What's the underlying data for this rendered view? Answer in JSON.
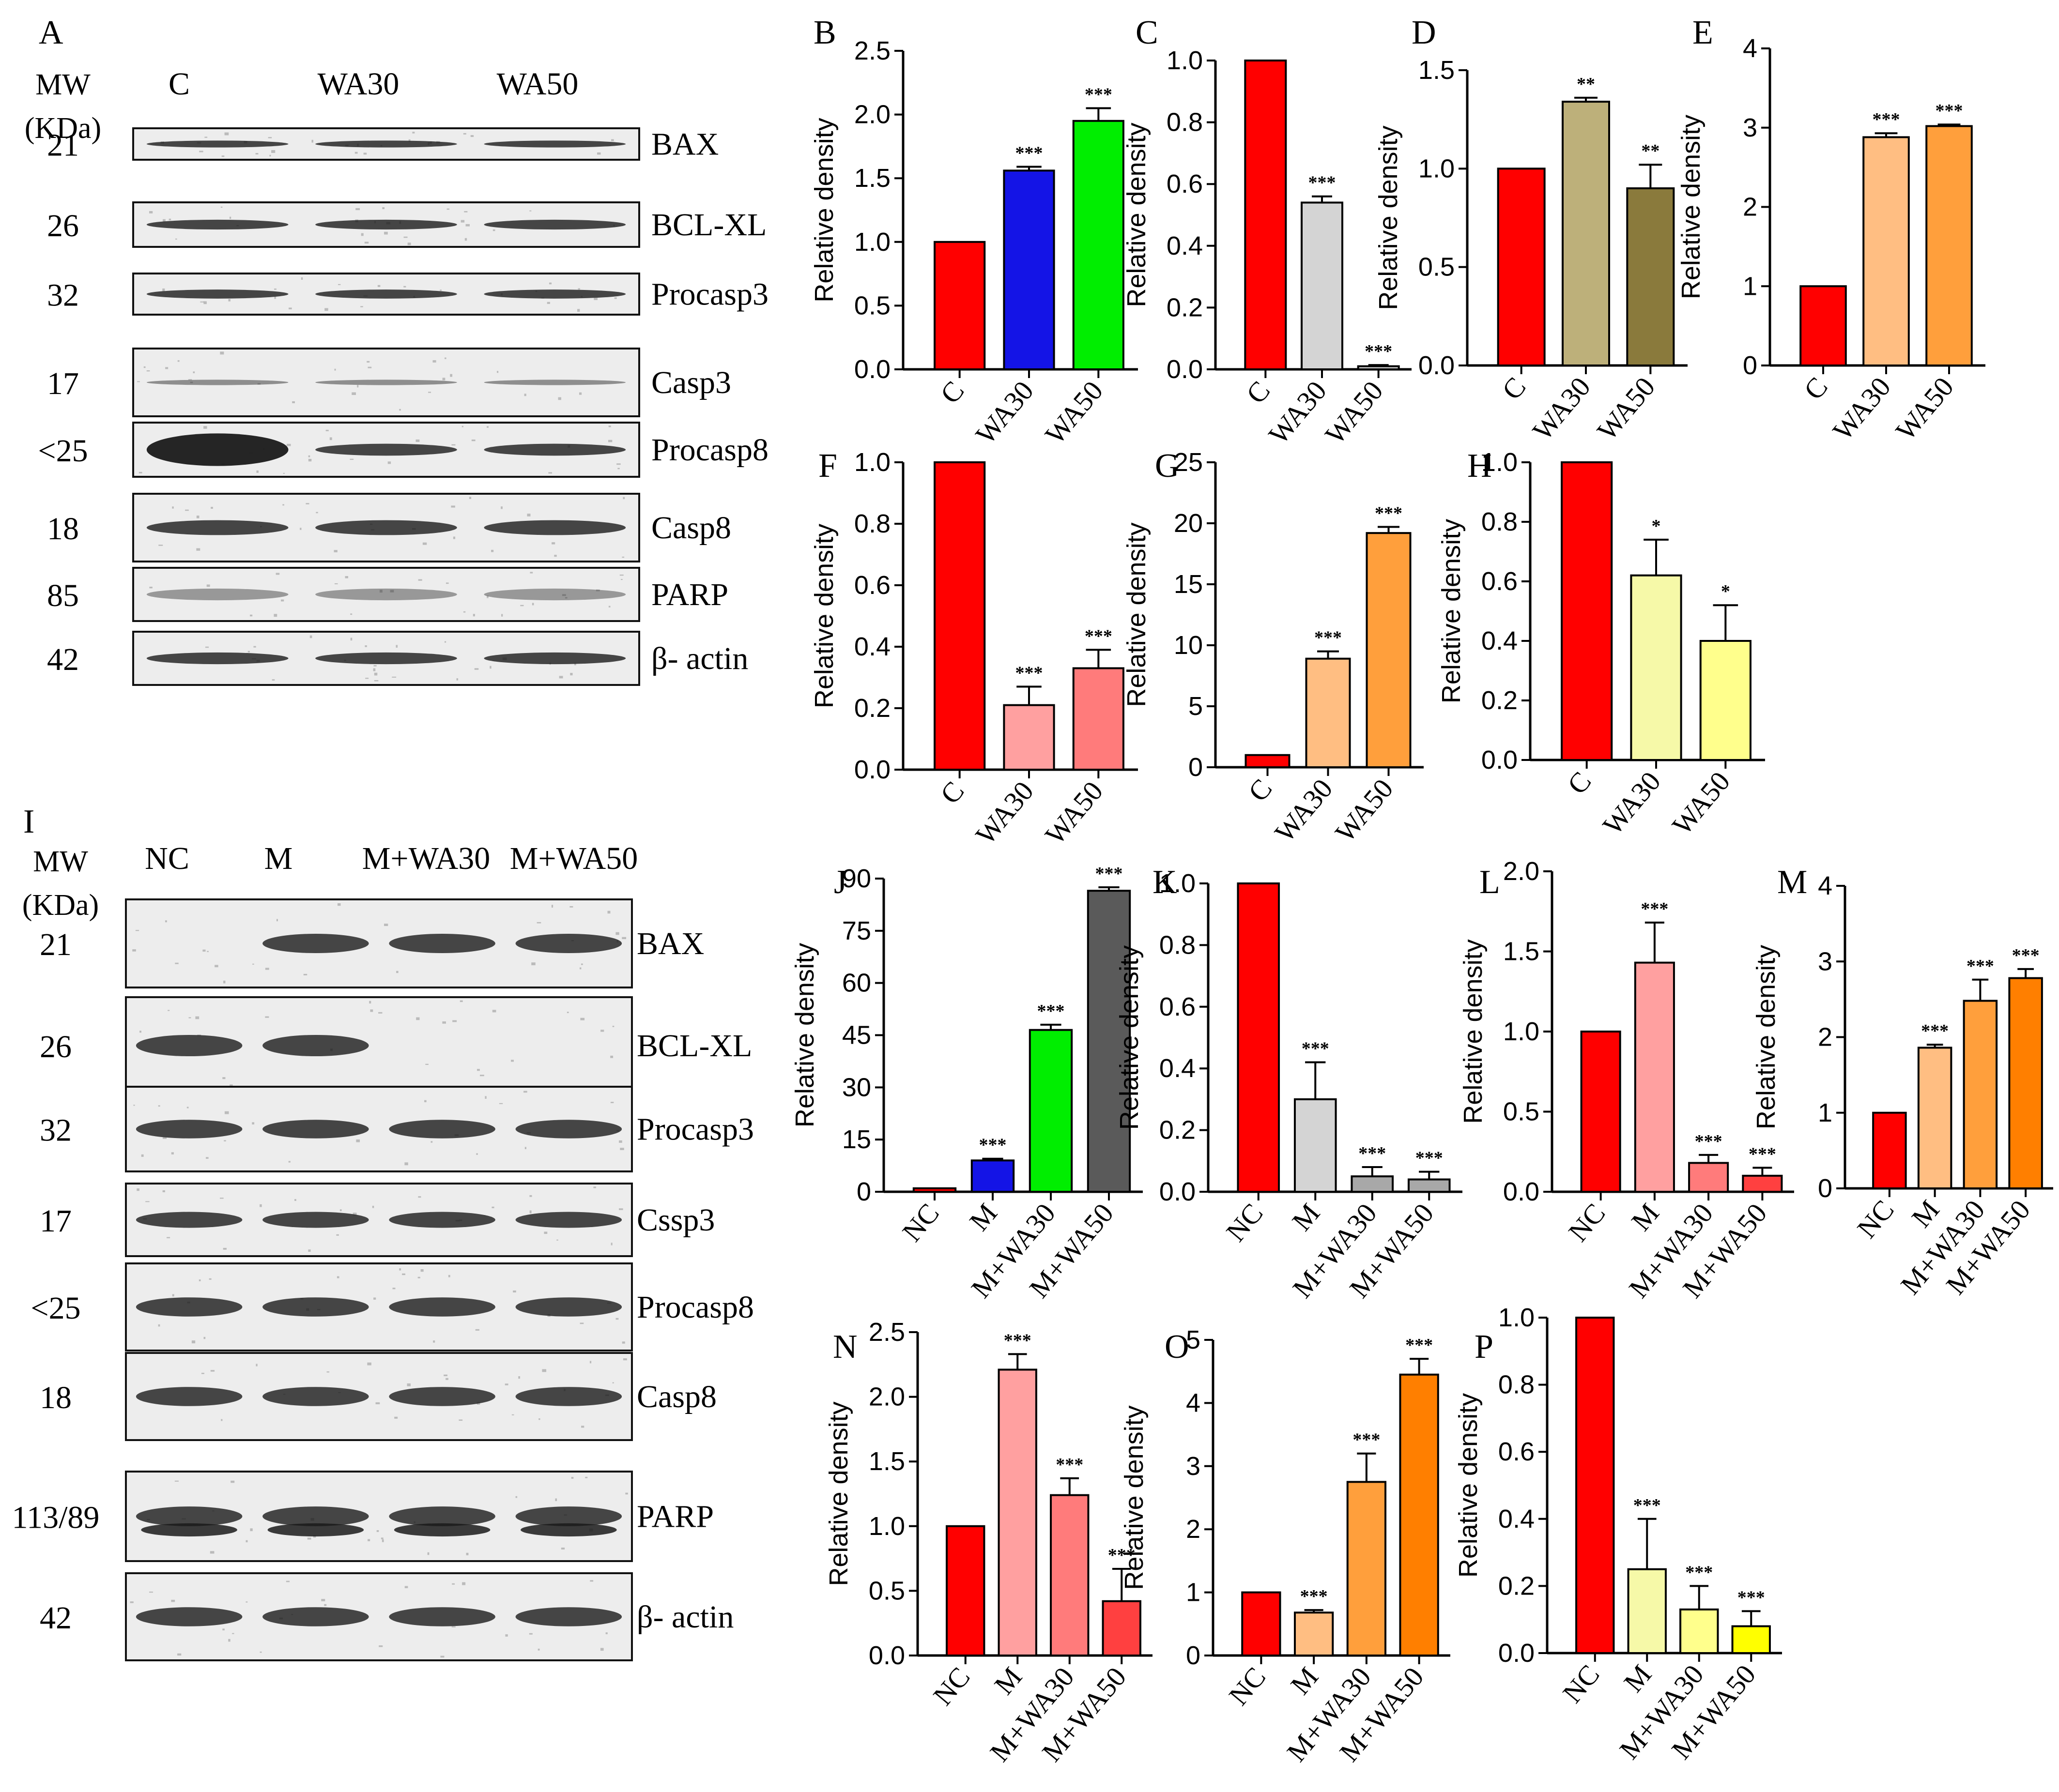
{
  "colors": {
    "red": "#ff0000",
    "blue": "#1414e6",
    "green": "#00ee00",
    "light_gray": "#d4d4d4",
    "khaki": "#bdb07a",
    "olive": "#8a7a3c",
    "light_orange": "#ffbe82",
    "orange": "#ff9f3c",
    "dark_orange": "#ff7f00",
    "pink": "#ffa0a0",
    "salmon": "#ff7b7b",
    "coral": "#ff4040",
    "pale_yellow": "#f6f9a8",
    "pale_yellow2": "#ffff8c",
    "yellow": "#ffff00",
    "gray": "#a8a8a8",
    "dark_gray": "#5a5a5a",
    "blot_band": "#1a1a1a"
  },
  "blots": [
    {
      "panel_label": "A",
      "mw_header": "MW\n(KDa)",
      "lanes": [
        "C",
        "WA30",
        "WA50"
      ],
      "rows": [
        {
          "mw": "21",
          "label": "BAX"
        },
        {
          "mw": "26",
          "label": "BCL-XL"
        },
        {
          "mw": "32",
          "label": "Procasp3"
        },
        {
          "mw": "17",
          "label": "Casp3"
        },
        {
          "mw": "<25",
          "label": "Procasp8"
        },
        {
          "mw": "18",
          "label": "Casp8"
        },
        {
          "mw": "85",
          "label": "PARP"
        },
        {
          "mw": "42",
          "label": "β- actin"
        }
      ]
    },
    {
      "panel_label": "I",
      "mw_header": "MW\n(KDa)",
      "lanes": [
        "NC",
        "M",
        "M+WA30",
        "M+WA50"
      ],
      "rows": [
        {
          "mw": "21",
          "label": "BAX"
        },
        {
          "mw": "26",
          "label": "BCL-XL"
        },
        {
          "mw": "32",
          "label": "Procasp3"
        },
        {
          "mw": "17",
          "label": "Cssp3"
        },
        {
          "mw": "<25",
          "label": "Procasp8"
        },
        {
          "mw": "18",
          "label": "Casp8"
        },
        {
          "mw": "113/89",
          "label": "PARP"
        },
        {
          "mw": "42",
          "label": "β- actin"
        }
      ]
    }
  ],
  "chart_data": [
    {
      "panel": "B",
      "type": "bar",
      "ylabel": "Relative density",
      "categories": [
        "C",
        "WA30",
        "WA50"
      ],
      "values": [
        1.0,
        1.56,
        1.95
      ],
      "errors": [
        0,
        0.03,
        0.1
      ],
      "significance": [
        "",
        "***",
        "***"
      ],
      "ylim": [
        0,
        2.5
      ],
      "yticks": [
        "0.0",
        "0.5",
        "1.0",
        "1.5",
        "2.0",
        "2.5"
      ],
      "colors": [
        "red",
        "blue",
        "green"
      ]
    },
    {
      "panel": "C",
      "type": "bar",
      "ylabel": "Relative density",
      "categories": [
        "C",
        "WA30",
        "WA50"
      ],
      "values": [
        1.0,
        0.54,
        0.01
      ],
      "errors": [
        0,
        0.02,
        0.004
      ],
      "significance": [
        "",
        "***",
        "***"
      ],
      "ylim": [
        0,
        1.0
      ],
      "yticks": [
        "0.0",
        "0.2",
        "0.4",
        "0.6",
        "0.8",
        "1.0"
      ],
      "colors": [
        "red",
        "light_gray",
        "light_gray"
      ]
    },
    {
      "panel": "D",
      "type": "bar",
      "ylabel": "Relative density",
      "categories": [
        "C",
        "WA30",
        "WA50"
      ],
      "values": [
        1.0,
        1.34,
        0.9
      ],
      "errors": [
        0,
        0.02,
        0.12
      ],
      "significance": [
        "",
        "**",
        "**"
      ],
      "ylim": [
        0,
        1.5
      ],
      "yticks": [
        "0.0",
        "0.5",
        "1.0",
        "1.5"
      ],
      "colors": [
        "red",
        "khaki",
        "olive"
      ]
    },
    {
      "panel": "E",
      "type": "bar",
      "ylabel": "Relative density",
      "categories": [
        "C",
        "WA30",
        "WA50"
      ],
      "values": [
        1.0,
        2.88,
        3.02
      ],
      "errors": [
        0,
        0.05,
        0.02
      ],
      "significance": [
        "",
        "***",
        "***"
      ],
      "ylim": [
        0,
        4
      ],
      "yticks": [
        "0",
        "1",
        "2",
        "3",
        "4"
      ],
      "colors": [
        "red",
        "light_orange",
        "orange"
      ]
    },
    {
      "panel": "F",
      "type": "bar",
      "ylabel": "Relative density",
      "categories": [
        "C",
        "WA30",
        "WA50"
      ],
      "values": [
        1.0,
        0.21,
        0.33
      ],
      "errors": [
        0,
        0.06,
        0.06
      ],
      "significance": [
        "",
        "***",
        "***"
      ],
      "ylim": [
        0,
        1.0
      ],
      "yticks": [
        "0.0",
        "0.2",
        "0.4",
        "0.6",
        "0.8",
        "1.0"
      ],
      "colors": [
        "red",
        "pink",
        "salmon"
      ]
    },
    {
      "panel": "G",
      "type": "bar",
      "ylabel": "Relative density",
      "categories": [
        "C",
        "WA30",
        "WA50"
      ],
      "values": [
        1.0,
        8.9,
        19.2
      ],
      "errors": [
        0,
        0.6,
        0.5
      ],
      "significance": [
        "",
        "***",
        "***"
      ],
      "ylim": [
        0,
        25
      ],
      "yticks": [
        "0",
        "5",
        "10",
        "15",
        "20",
        "25"
      ],
      "colors": [
        "red",
        "light_orange",
        "orange"
      ]
    },
    {
      "panel": "H",
      "type": "bar",
      "ylabel": "Relative density",
      "categories": [
        "C",
        "WA30",
        "WA50"
      ],
      "values": [
        1.0,
        0.62,
        0.4
      ],
      "errors": [
        0,
        0.12,
        0.12
      ],
      "significance": [
        "",
        "*",
        "*"
      ],
      "ylim": [
        0,
        1.0
      ],
      "yticks": [
        "0.0",
        "0.2",
        "0.4",
        "0.6",
        "0.8",
        "1.0"
      ],
      "colors": [
        "red",
        "pale_yellow",
        "pale_yellow2"
      ]
    },
    {
      "panel": "J",
      "type": "bar",
      "ylabel": "Relative density",
      "categories": [
        "NC",
        "M",
        "M+WA30",
        "M+WA50"
      ],
      "values": [
        1.0,
        9.0,
        46.5,
        86.5
      ],
      "errors": [
        0,
        0.5,
        1.5,
        1.0
      ],
      "significance": [
        "",
        "***",
        "***",
        "***"
      ],
      "ylim": [
        0,
        90
      ],
      "yticks": [
        "0",
        "15",
        "30",
        "45",
        "60",
        "75",
        "90"
      ],
      "colors": [
        "red",
        "blue",
        "green",
        "dark_gray"
      ]
    },
    {
      "panel": "K",
      "type": "bar",
      "ylabel": "Relative density",
      "categories": [
        "NC",
        "M",
        "M+WA30",
        "M+WA50"
      ],
      "values": [
        1.0,
        0.3,
        0.05,
        0.04
      ],
      "errors": [
        0,
        0.12,
        0.03,
        0.025
      ],
      "significance": [
        "",
        "***",
        "***",
        "***"
      ],
      "ylim": [
        0,
        1.0
      ],
      "yticks": [
        "0.0",
        "0.2",
        "0.4",
        "0.6",
        "0.8",
        "1.0"
      ],
      "colors": [
        "red",
        "light_gray",
        "gray",
        "gray"
      ]
    },
    {
      "panel": "L",
      "type": "bar",
      "ylabel": "Relative density",
      "categories": [
        "NC",
        "M",
        "M+WA30",
        "M+WA50"
      ],
      "values": [
        1.0,
        1.43,
        0.18,
        0.1
      ],
      "errors": [
        0,
        0.25,
        0.05,
        0.05
      ],
      "significance": [
        "",
        "***",
        "***",
        "***"
      ],
      "ylim": [
        0,
        2.0
      ],
      "yticks": [
        "0.0",
        "0.5",
        "1.0",
        "1.5",
        "2.0"
      ],
      "colors": [
        "red",
        "pink",
        "salmon",
        "coral"
      ]
    },
    {
      "panel": "M",
      "type": "bar",
      "ylabel": "Relative density",
      "categories": [
        "NC",
        "M",
        "M+WA30",
        "M+WA50"
      ],
      "values": [
        1.0,
        1.86,
        2.48,
        2.78
      ],
      "errors": [
        0,
        0.04,
        0.28,
        0.12
      ],
      "significance": [
        "",
        "***",
        "***",
        "***"
      ],
      "ylim": [
        0,
        4
      ],
      "yticks": [
        "0",
        "1",
        "2",
        "3",
        "4"
      ],
      "colors": [
        "red",
        "light_orange",
        "orange",
        "dark_orange"
      ]
    },
    {
      "panel": "N",
      "type": "bar",
      "ylabel": "Relative density",
      "categories": [
        "NC",
        "M",
        "M+WA30",
        "M+WA50"
      ],
      "values": [
        1.0,
        2.21,
        1.24,
        0.42
      ],
      "errors": [
        0,
        0.12,
        0.13,
        0.25
      ],
      "significance": [
        "",
        "***",
        "***",
        "***"
      ],
      "ylim": [
        0,
        2.5
      ],
      "yticks": [
        "0.0",
        "0.5",
        "1.0",
        "1.5",
        "2.0",
        "2.5"
      ],
      "colors": [
        "red",
        "pink",
        "salmon",
        "coral"
      ]
    },
    {
      "panel": "O",
      "type": "bar",
      "ylabel": "Relative density",
      "categories": [
        "NC",
        "M",
        "M+WA30",
        "M+WA50"
      ],
      "values": [
        1.0,
        0.68,
        2.75,
        4.45
      ],
      "errors": [
        0,
        0.04,
        0.45,
        0.25
      ],
      "significance": [
        "",
        "***",
        "***",
        "***"
      ],
      "ylim": [
        0,
        5
      ],
      "yticks": [
        "0",
        "1",
        "2",
        "3",
        "4",
        "5"
      ],
      "colors": [
        "red",
        "light_orange",
        "orange",
        "dark_orange"
      ]
    },
    {
      "panel": "P",
      "type": "bar",
      "ylabel": "Relative density",
      "categories": [
        "NC",
        "M",
        "M+WA30",
        "M+WA50"
      ],
      "values": [
        1.0,
        0.25,
        0.13,
        0.08
      ],
      "errors": [
        0,
        0.15,
        0.07,
        0.045
      ],
      "significance": [
        "",
        "***",
        "***",
        "***"
      ],
      "ylim": [
        0,
        1.0
      ],
      "yticks": [
        "0.0",
        "0.2",
        "0.4",
        "0.6",
        "0.8",
        "1.0"
      ],
      "colors": [
        "red",
        "pale_yellow",
        "pale_yellow2",
        "yellow"
      ]
    }
  ]
}
